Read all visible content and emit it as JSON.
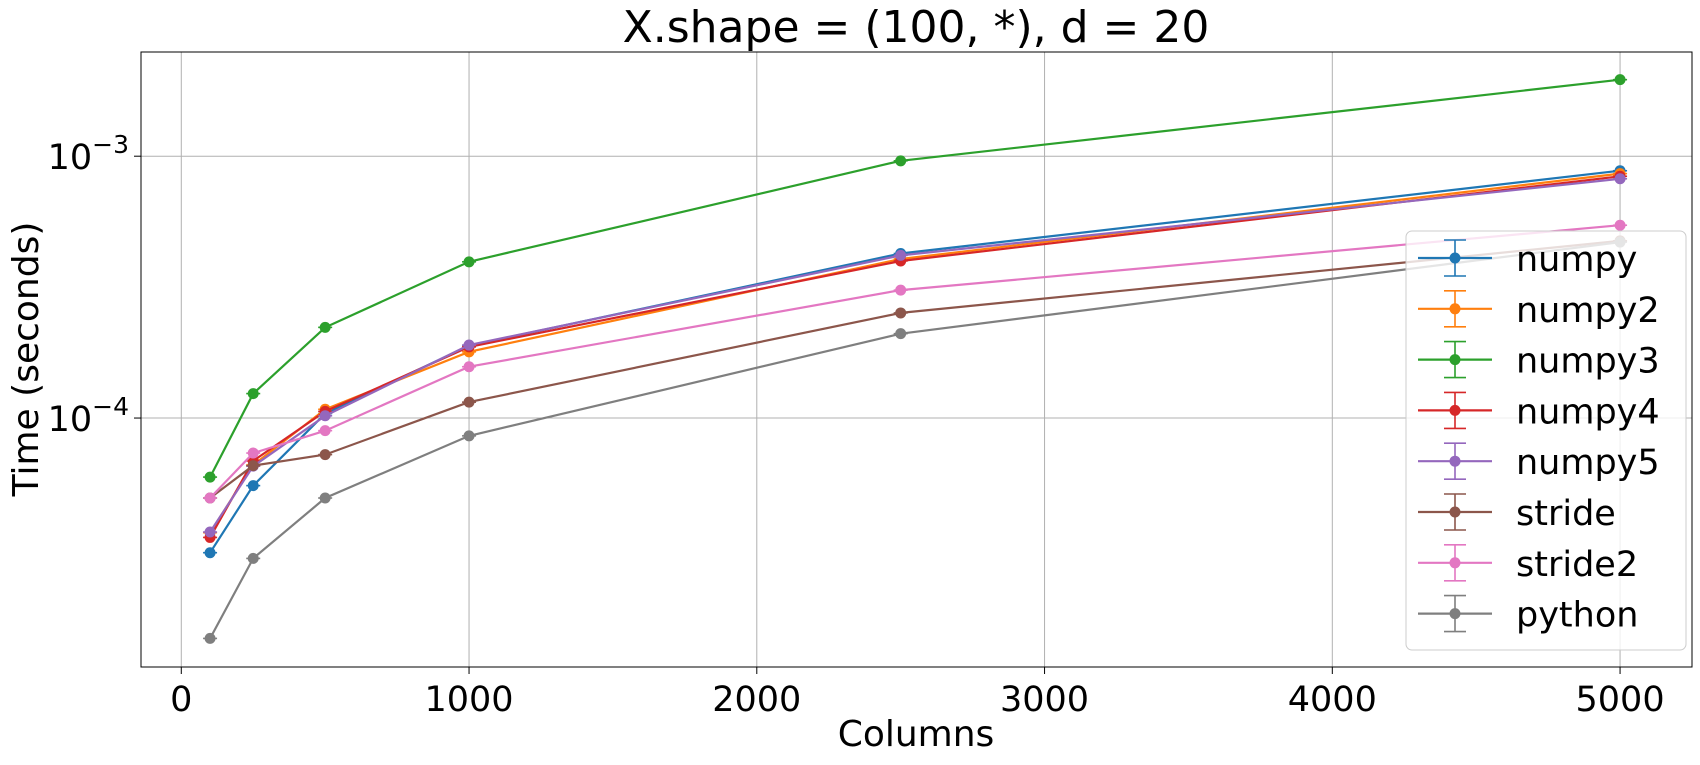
{
  "chart_data": {
    "type": "line",
    "title": "X.shape = (100, *), d = 20",
    "xlabel": "Columns",
    "ylabel": "Time (seconds)",
    "xlim": [
      -140,
      5250
    ],
    "ylim": [
      1.12e-05,
      0.0025
    ],
    "yscale": "log",
    "grid": true,
    "legend_position": "right",
    "xticks": [
      {
        "value": 0,
        "label": "0"
      },
      {
        "value": 1000,
        "label": "1000"
      },
      {
        "value": 2000,
        "label": "2000"
      },
      {
        "value": 3000,
        "label": "3000"
      },
      {
        "value": 4000,
        "label": "4000"
      },
      {
        "value": 5000,
        "label": "5000"
      }
    ],
    "yticks": [
      {
        "value": 0.0001,
        "base": "10",
        "exp": "−4"
      },
      {
        "value": 0.001,
        "base": "10",
        "exp": "−3"
      }
    ],
    "x": [
      100,
      250,
      500,
      1000,
      2500,
      5000
    ],
    "series": [
      {
        "name": "numpy",
        "color": "#1f77b4",
        "values": [
          3.06e-05,
          5.52e-05,
          0.000104,
          0.000189,
          0.000425,
          0.00088
        ]
      },
      {
        "name": "numpy2",
        "color": "#ff7f0e",
        "values": [
          3.65e-05,
          6.62e-05,
          0.000108,
          0.000179,
          0.000405,
          0.000858
        ]
      },
      {
        "name": "numpy3",
        "color": "#2ca02c",
        "values": [
          5.95e-05,
          0.000124,
          0.000222,
          0.000395,
          0.00096,
          0.00196
        ]
      },
      {
        "name": "numpy4",
        "color": "#d62728",
        "values": [
          3.5e-05,
          6.86e-05,
          0.000106,
          0.000187,
          0.000398,
          0.000838
        ]
      },
      {
        "name": "numpy5",
        "color": "#9467bd",
        "values": [
          3.67e-05,
          6.55e-05,
          0.000102,
          0.00019,
          0.000418,
          0.00082
        ]
      },
      {
        "name": "stride",
        "color": "#8c564b",
        "values": [
          4.95e-05,
          6.58e-05,
          7.25e-05,
          0.000115,
          0.000252,
          0.000475
        ]
      },
      {
        "name": "stride2",
        "color": "#e377c2",
        "values": [
          4.95e-05,
          7.35e-05,
          8.95e-05,
          0.000157,
          0.000308,
          0.000545
        ]
      },
      {
        "name": "python",
        "color": "#7f7f7f",
        "values": [
          1.44e-05,
          2.91e-05,
          4.95e-05,
          8.55e-05,
          0.00021,
          0.00047
        ]
      }
    ]
  }
}
